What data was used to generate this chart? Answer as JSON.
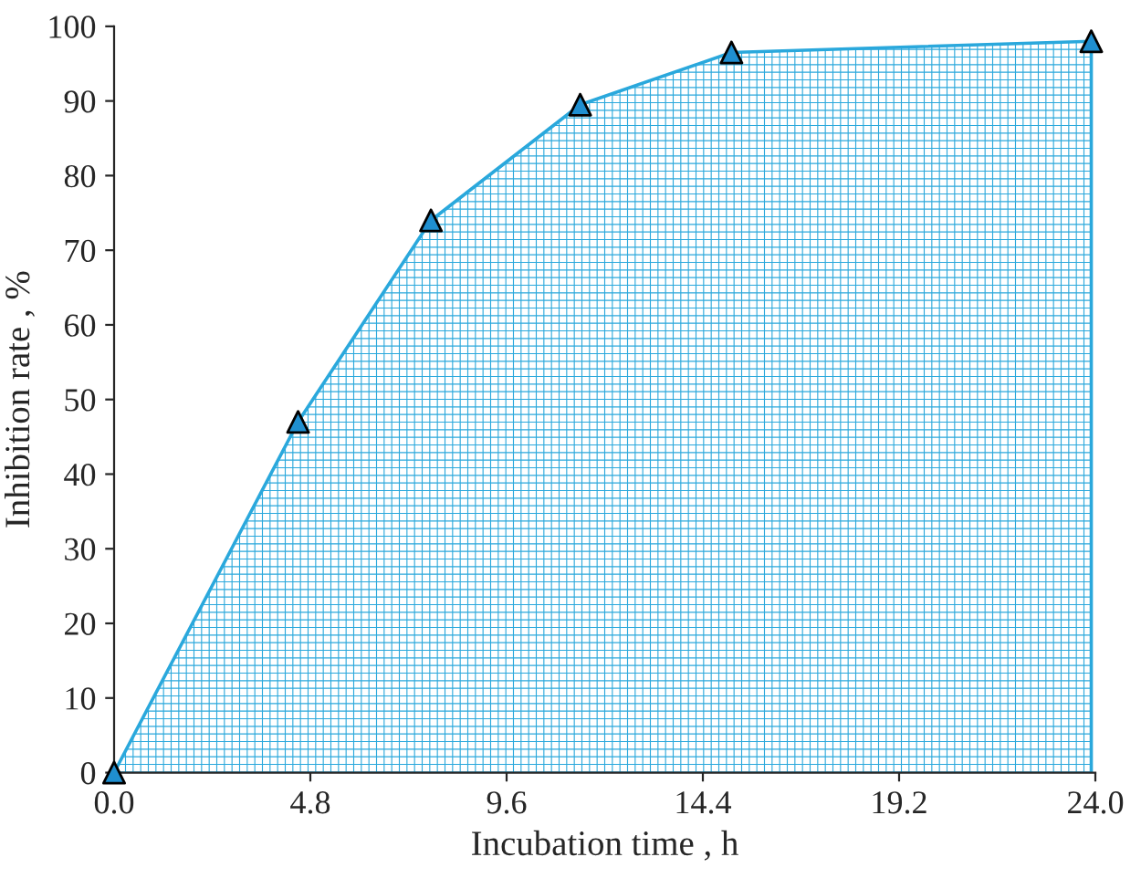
{
  "chart_data": {
    "type": "area",
    "xlabel": "Incubation time , h",
    "ylabel": "Inhibition rate , %",
    "x": [
      0,
      4.5,
      7.75,
      11.4,
      15.1,
      23.9
    ],
    "series": [
      {
        "color": "#2aa8dc",
        "values": [
          0,
          47,
          74,
          89.5,
          96.5,
          98
        ]
      }
    ],
    "xlim": [
      0,
      24
    ],
    "xticks": [
      {
        "value": 0,
        "label": "0.0"
      },
      4.8,
      9.6,
      14.4,
      19.2,
      {
        "value": 24,
        "label": "24.0"
      }
    ],
    "ylim": [
      0,
      100
    ],
    "yticks": [
      0,
      10,
      20,
      30,
      40,
      50,
      60,
      70,
      80,
      90,
      100
    ],
    "marker": "triangle",
    "grid": false
  }
}
